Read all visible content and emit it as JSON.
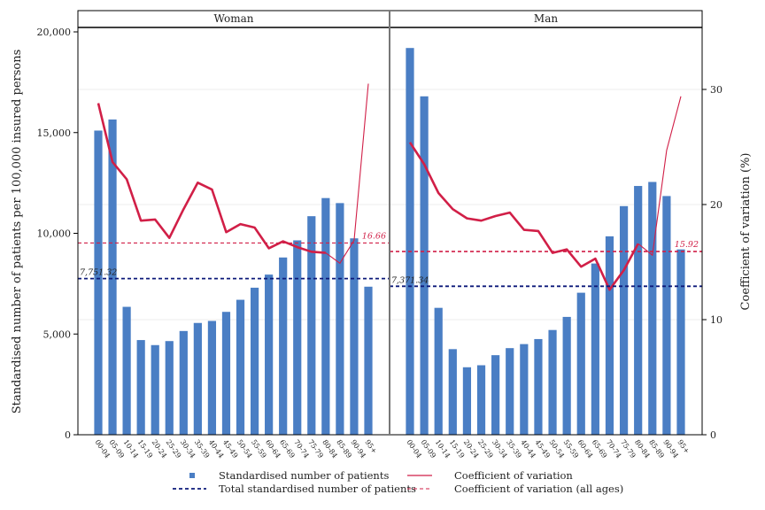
{
  "chart_data": {
    "type": "bar",
    "categories": [
      "00-04",
      "05-09",
      "10-14",
      "15-19",
      "20-24",
      "25-29",
      "30-34",
      "35-39",
      "40-44",
      "45-49",
      "50-54",
      "55-59",
      "60-64",
      "65-69",
      "70-74",
      "75-79",
      "80-84",
      "85-89",
      "90-94",
      "95+"
    ],
    "ylabel": "Standardised number of patients per 100,000 insured persons",
    "y2label": "Coefficient of variation (%)",
    "ylim": [
      0,
      20000
    ],
    "y2lim": [
      0,
      35
    ],
    "yticks": [
      "0",
      "5,000",
      "10,000",
      "15,000",
      "20,000"
    ],
    "y2ticks": [
      "0",
      "10",
      "20",
      "30"
    ],
    "grid": true,
    "legend_position": "bottom",
    "panels": [
      {
        "title": "Woman",
        "bars": [
          15100,
          15650,
          6350,
          4700,
          4450,
          4650,
          5150,
          5550,
          5650,
          6100,
          6700,
          7300,
          7950,
          8800,
          9650,
          10850,
          11750,
          11500,
          9750,
          7350
        ],
        "cv": [
          28.8,
          23.7,
          22.2,
          18.6,
          18.7,
          17.1,
          19.6,
          21.9,
          21.3,
          17.6,
          18.3,
          18.0,
          16.2,
          16.8,
          16.3,
          15.9,
          15.8,
          null,
          null,
          null
        ],
        "cv_tail": [
          null,
          null,
          null,
          null,
          null,
          null,
          null,
          null,
          null,
          null,
          null,
          null,
          null,
          null,
          null,
          null,
          15.8,
          14.9,
          16.9,
          30.5
        ],
        "total_patients": 7751.32,
        "total_label": "7,751.32",
        "cv_all": 16.66,
        "cv_all_label": "16.66"
      },
      {
        "title": "Man",
        "bars": [
          19200,
          16800,
          6300,
          4250,
          3350,
          3450,
          3950,
          4300,
          4500,
          4750,
          5200,
          5850,
          7050,
          8500,
          9850,
          11350,
          12350,
          12550,
          11850,
          9200
        ],
        "cv": [
          25.4,
          23.5,
          21.0,
          19.6,
          18.8,
          18.6,
          19.0,
          19.3,
          17.8,
          17.7,
          15.8,
          16.1,
          14.6,
          15.3,
          12.6,
          14.3,
          16.6,
          null,
          null,
          null
        ],
        "cv_tail": [
          null,
          null,
          null,
          null,
          null,
          null,
          null,
          null,
          null,
          null,
          null,
          null,
          null,
          null,
          null,
          null,
          16.6,
          15.6,
          24.7,
          29.4
        ],
        "total_patients": 7371.34,
        "total_label": "7,371.34",
        "cv_all": 15.92,
        "cv_all_label": "15.92"
      }
    ],
    "legend": [
      {
        "key": "bars",
        "label": "Standardised number of patients"
      },
      {
        "key": "cv",
        "label": "Coefficient of variation"
      },
      {
        "key": "total",
        "label": "Total standardised number of patients"
      },
      {
        "key": "cv_all",
        "label": "Coefficient of variation (all ages)"
      }
    ],
    "colors": {
      "bar": "#4a7ec4",
      "cv": "#d11f47",
      "total": "#0d1a7a",
      "cv_all": "#d11f47",
      "frame": "#000000",
      "divider": "#777777",
      "grid": "#ececec"
    }
  }
}
